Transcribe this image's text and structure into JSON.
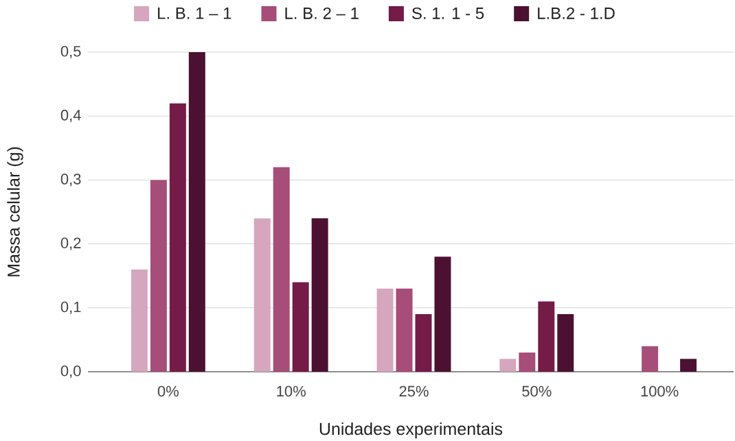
{
  "chart_data": {
    "type": "bar",
    "xlabel": "Unidades experimentais",
    "ylabel": "Massa celular (g)",
    "categories": [
      "0%",
      "10%",
      "25%",
      "50%",
      "100%"
    ],
    "series": [
      {
        "name": "L. B. 1 – 1",
        "color": "#d5a6bd",
        "values": [
          0.16,
          0.24,
          0.13,
          0.02,
          null
        ]
      },
      {
        "name": "L. B. 2 – 1",
        "color": "#a64d79",
        "values": [
          0.3,
          0.32,
          0.13,
          0.03,
          0.04
        ]
      },
      {
        "name": "S. 1. 1 - 5",
        "color": "#741b47",
        "values": [
          0.42,
          0.14,
          0.09,
          0.11,
          null
        ]
      },
      {
        "name": "L.B.2 - 1.D",
        "color": "#4c1130",
        "values": [
          0.5,
          0.24,
          0.18,
          0.09,
          0.02
        ]
      }
    ],
    "ylim": [
      0,
      0.5
    ],
    "yticks": [
      {
        "value": 0,
        "label": "0,0"
      },
      {
        "value": 0.1,
        "label": "0,1"
      },
      {
        "value": 0.2,
        "label": "0,2"
      },
      {
        "value": 0.3,
        "label": "0,3"
      },
      {
        "value": 0.4,
        "label": "0,4"
      },
      {
        "value": 0.5,
        "label": "0,5"
      }
    ],
    "grid": "y",
    "legend": "top"
  }
}
